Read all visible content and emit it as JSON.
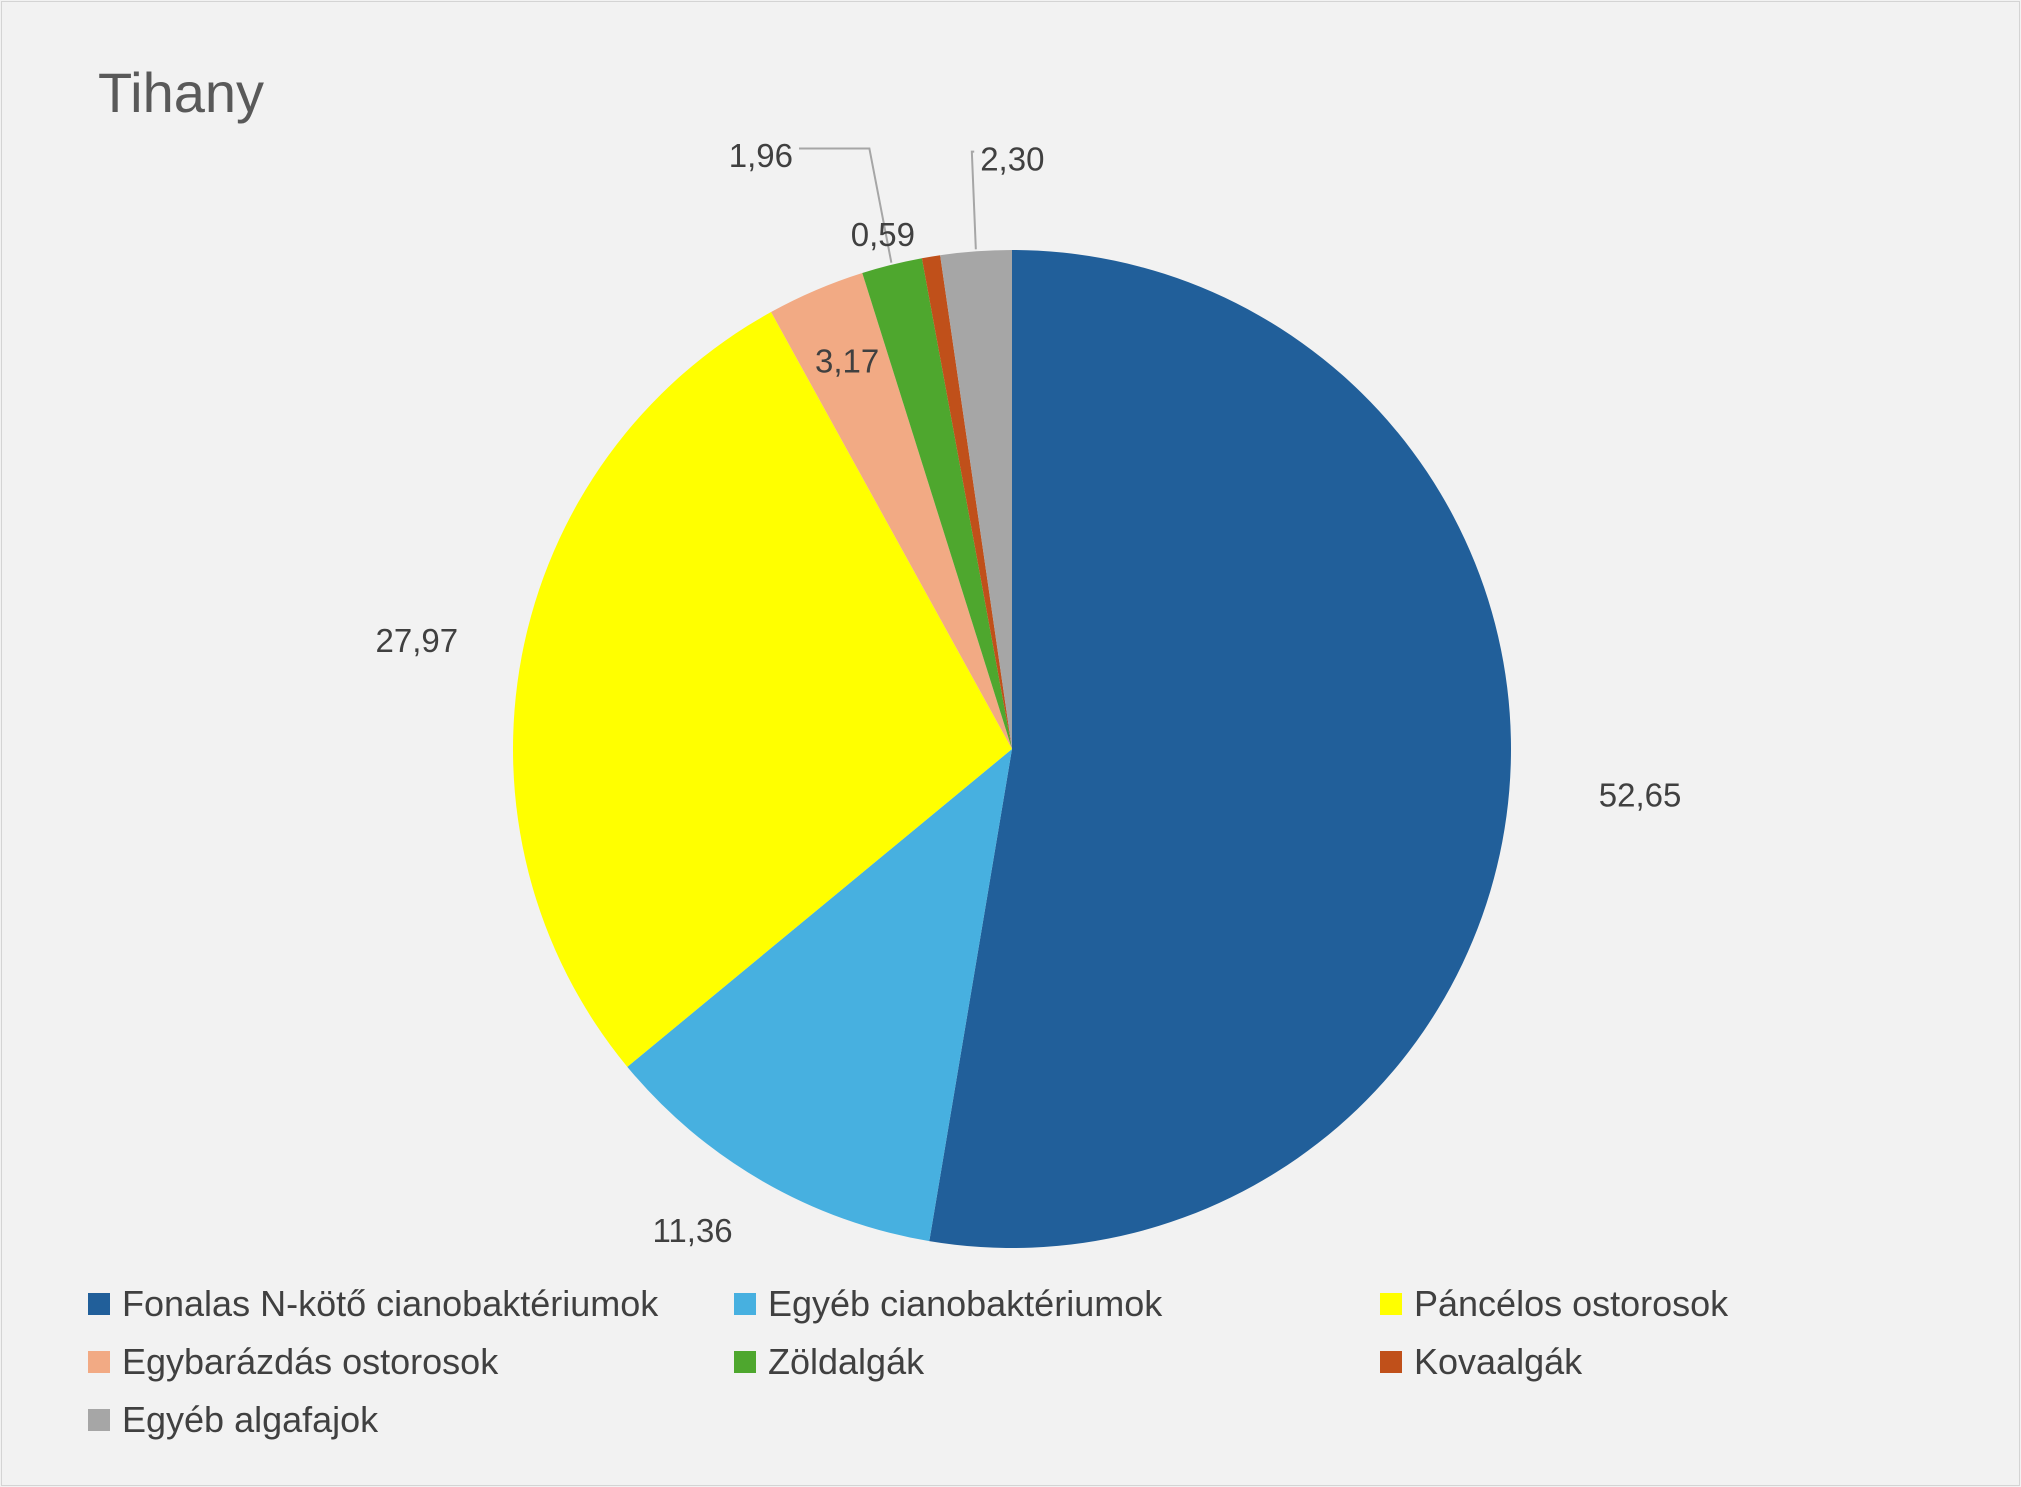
{
  "chart_data": {
    "type": "pie",
    "title": "Tihany",
    "categories": [
      "Fonalas N-kötő cianobaktériumok",
      "Egyéb cianobaktériumok",
      "Páncélos ostorosok",
      "Egybarázdás ostorosok",
      "Zöldalgák",
      "Kovaalgák",
      "Egyéb algafajok"
    ],
    "values": [
      52.65,
      11.36,
      27.97,
      3.17,
      1.96,
      0.59,
      2.3
    ],
    "labels": [
      "52,65",
      "11,36",
      "27,97",
      "3,17",
      "1,96",
      "0,59",
      "2,30"
    ],
    "colors": [
      "#215f9a",
      "#47b0e0",
      "#ffff00",
      "#f2aa84",
      "#4ea72e",
      "#c0501a",
      "#a6a6a6"
    ],
    "legend": "bottom"
  }
}
